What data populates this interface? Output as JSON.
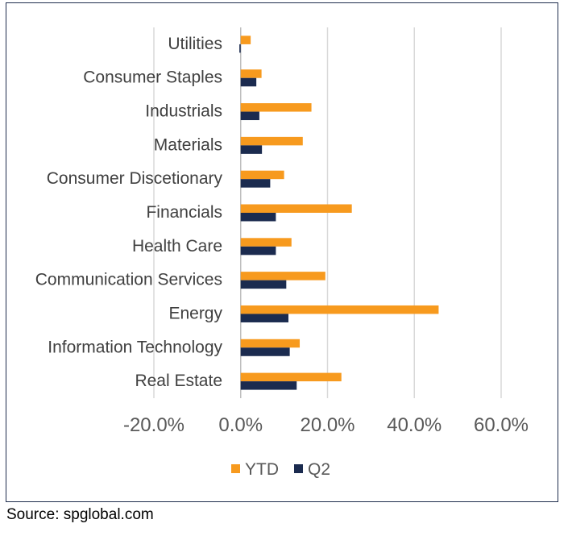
{
  "chart_data": {
    "type": "bar",
    "orientation": "horizontal",
    "categories": [
      "Utilities",
      "Consumer Staples",
      "Industrials",
      "Materials",
      "Consumer Discetionary",
      "Financials",
      "Health Care",
      "Communication Services",
      "Energy",
      "Information Technology",
      "Real Estate"
    ],
    "series": [
      {
        "name": "YTD",
        "color": "#f79a1e",
        "values": [
          2.3,
          4.8,
          16.3,
          14.3,
          10.0,
          25.6,
          11.7,
          19.5,
          45.6,
          13.6,
          23.2
        ]
      },
      {
        "name": "Q2",
        "color": "#1b2b4f",
        "values": [
          -0.3,
          3.6,
          4.3,
          4.9,
          6.8,
          8.1,
          8.1,
          10.5,
          11.0,
          11.3,
          12.9
        ]
      }
    ],
    "xlim": [
      -20,
      60
    ],
    "x_ticks": [
      "-20.0%",
      "0.0%",
      "20.0%",
      "40.0%",
      "60.0%"
    ],
    "x_tick_values": [
      -20,
      0,
      20,
      40,
      60
    ],
    "grid": "vertical",
    "legend": "bottom-center",
    "title": "",
    "xlabel": "",
    "ylabel": ""
  },
  "source": "Source: spglobal.com"
}
